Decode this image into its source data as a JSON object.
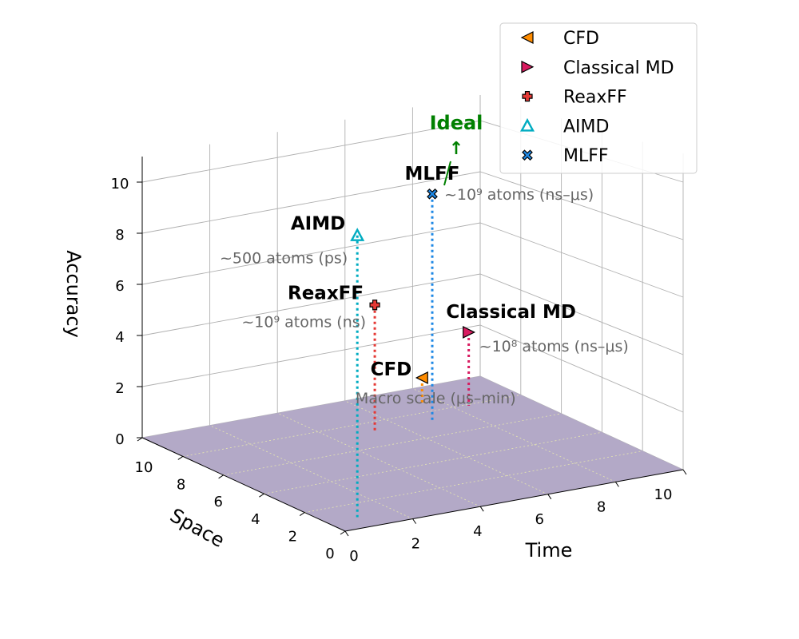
{
  "chart_data": {
    "type": "scatter",
    "dimensions": "3d",
    "xlabel": "Time",
    "ylabel": "Space",
    "zlabel": "Accuracy",
    "xlim": [
      0,
      10
    ],
    "ylim": [
      0,
      10
    ],
    "zlim": [
      0,
      11
    ],
    "xticks": [
      "0",
      "2",
      "4",
      "6",
      "8",
      "10"
    ],
    "yticks": [
      "0",
      "2",
      "4",
      "6",
      "8",
      "10"
    ],
    "zticks": [
      "0",
      "2",
      "4",
      "6",
      "8",
      "10"
    ],
    "grid": true,
    "legend_position": "top-right",
    "floor_color": "#b3a9c7",
    "series": [
      {
        "name": "CFD",
        "x": 7.5,
        "y": 8.7,
        "z": 1.0,
        "marker": "triangle-left",
        "color": "#ff8c00",
        "note": "Macro scale (μs–min)"
      },
      {
        "name": "Classical MD",
        "x": 8.4,
        "y": 7.9,
        "z": 2.8,
        "marker": "triangle-right",
        "color": "#d81b60",
        "note": "~10⁸ atoms (ns–μs)"
      },
      {
        "name": "ReaxFF",
        "x": 5.2,
        "y": 7.2,
        "z": 4.8,
        "marker": "plus",
        "color": "#e53935",
        "note": "~10⁹ atoms (ns)"
      },
      {
        "name": "AIMD",
        "x": 0.9,
        "y": 0.9,
        "z": 9.9,
        "marker": "triangle-up-open",
        "color": "#00acc1",
        "note": "~500 atoms (ps)"
      },
      {
        "name": "MLFF",
        "x": 6.9,
        "y": 7.2,
        "z": 8.6,
        "marker": "x",
        "color": "#1e88e5",
        "note": "~10⁹ atoms (ns–μs)"
      }
    ],
    "annotations": [
      {
        "text": "Ideal",
        "arrow": "↑",
        "color": "#008000"
      }
    ]
  }
}
